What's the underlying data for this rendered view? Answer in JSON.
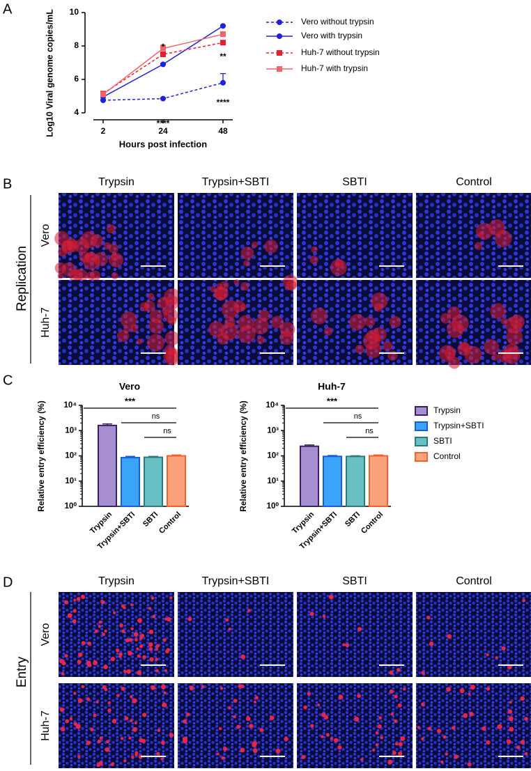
{
  "panel_labels": [
    "A",
    "B",
    "C",
    "D"
  ],
  "chart_data": [
    {
      "type": "line",
      "x_label": "Hours post infection",
      "y_label": "Log10 Viral genome copies/mL",
      "categories": [
        "2",
        "24",
        "48"
      ],
      "ylim": [
        4,
        10
      ],
      "yticks": [
        4,
        6,
        8,
        10
      ],
      "series": [
        {
          "name": "Vero without trypsin",
          "color": "#1f22d8",
          "line_style": "dashed",
          "marker": "circle",
          "values": [
            4.75,
            4.85,
            5.8
          ],
          "errors": [
            0.05,
            0.05,
            0.55
          ]
        },
        {
          "name": "Vero with trypsin",
          "color": "#1f22d8",
          "line_style": "solid",
          "marker": "circle",
          "values": [
            4.95,
            6.9,
            9.2
          ],
          "errors": [
            0.05,
            0.05,
            0.05
          ]
        },
        {
          "name": "Huh-7 without trypsin",
          "color": "#e5202a",
          "line_style": "dashed",
          "marker": "square",
          "values": [
            5.15,
            7.5,
            8.2
          ],
          "errors": [
            0.05,
            0.1,
            0.05
          ]
        },
        {
          "name": "Huh-7 with trypsin",
          "color": "#f0646c",
          "line_style": "solid",
          "marker": "square",
          "values": [
            5.1,
            7.85,
            8.7
          ],
          "errors": [
            0.05,
            0.2,
            0.15
          ]
        }
      ],
      "annotations": [
        {
          "text": "*",
          "category": "24"
        },
        {
          "text": "**",
          "category": "48"
        },
        {
          "text": "****",
          "category": "24"
        },
        {
          "text": "****",
          "category": "48"
        }
      ]
    },
    {
      "type": "bar",
      "title": "Vero",
      "y_label": "Relative entry efficiency (%)",
      "categories": [
        "Trypsin",
        "Trypsin+SBTI",
        "SBTI",
        "Control"
      ],
      "colors": [
        "#a68fd0",
        "#3aa5f7",
        "#68bfc4",
        "#f9a27c"
      ],
      "edge_colors": [
        "#3b1f5e",
        "#1a5bd6",
        "#2b7b7d",
        "#f0622a"
      ],
      "values": [
        1600,
        85,
        88,
        100
      ],
      "errors": [
        250,
        10,
        7,
        8
      ],
      "log_scale": true,
      "ylim": [
        1,
        10000
      ],
      "yticks": [
        {
          "value": 1,
          "label": "10⁰"
        },
        {
          "value": 10,
          "label": "10¹"
        },
        {
          "value": 100,
          "label": "10²"
        },
        {
          "value": 1000,
          "label": "10³"
        },
        {
          "value": 10000,
          "label": "10⁴"
        }
      ],
      "comparisons": [
        {
          "from": "Trypsin",
          "to": "Control",
          "label": "***"
        },
        {
          "from": "Trypsin+SBTI",
          "to": "Control",
          "label": "ns"
        },
        {
          "from": "SBTI",
          "to": "Control",
          "label": "ns"
        }
      ],
      "legend": false
    },
    {
      "type": "bar",
      "title": "Huh-7",
      "y_label": "Relative entry efficiency (%)",
      "categories": [
        "Trypsin",
        "Trypsin+SBTI",
        "SBTI",
        "Control"
      ],
      "colors": [
        "#a68fd0",
        "#3aa5f7",
        "#68bfc4",
        "#f9a27c"
      ],
      "edge_colors": [
        "#3b1f5e",
        "#1a5bd6",
        "#2b7b7d",
        "#f0622a"
      ],
      "values": [
        240,
        95,
        95,
        100
      ],
      "errors": [
        30,
        8,
        6,
        8
      ],
      "log_scale": true,
      "ylim": [
        1,
        10000
      ],
      "yticks": [
        {
          "value": 1,
          "label": "10⁰"
        },
        {
          "value": 10,
          "label": "10¹"
        },
        {
          "value": 100,
          "label": "10²"
        },
        {
          "value": 1000,
          "label": "10³"
        },
        {
          "value": 10000,
          "label": "10⁴"
        }
      ],
      "comparisons": [
        {
          "from": "Trypsin",
          "to": "Control",
          "label": "***"
        },
        {
          "from": "Trypsin+SBTI",
          "to": "Control",
          "label": "ns"
        },
        {
          "from": "SBTI",
          "to": "Control",
          "label": "ns"
        }
      ],
      "legend": true
    }
  ],
  "image_panels": [
    {
      "group": "Replication",
      "columns": [
        "Trypsin",
        "Trypsin+SBTI",
        "SBTI",
        "Control"
      ],
      "rows": [
        "Vero",
        "Huh-7"
      ]
    },
    {
      "group": "Entry",
      "columns": [
        "Trypsin",
        "Trypsin+SBTI",
        "SBTI",
        "Control"
      ],
      "rows": [
        "Vero",
        "Huh-7"
      ]
    }
  ]
}
